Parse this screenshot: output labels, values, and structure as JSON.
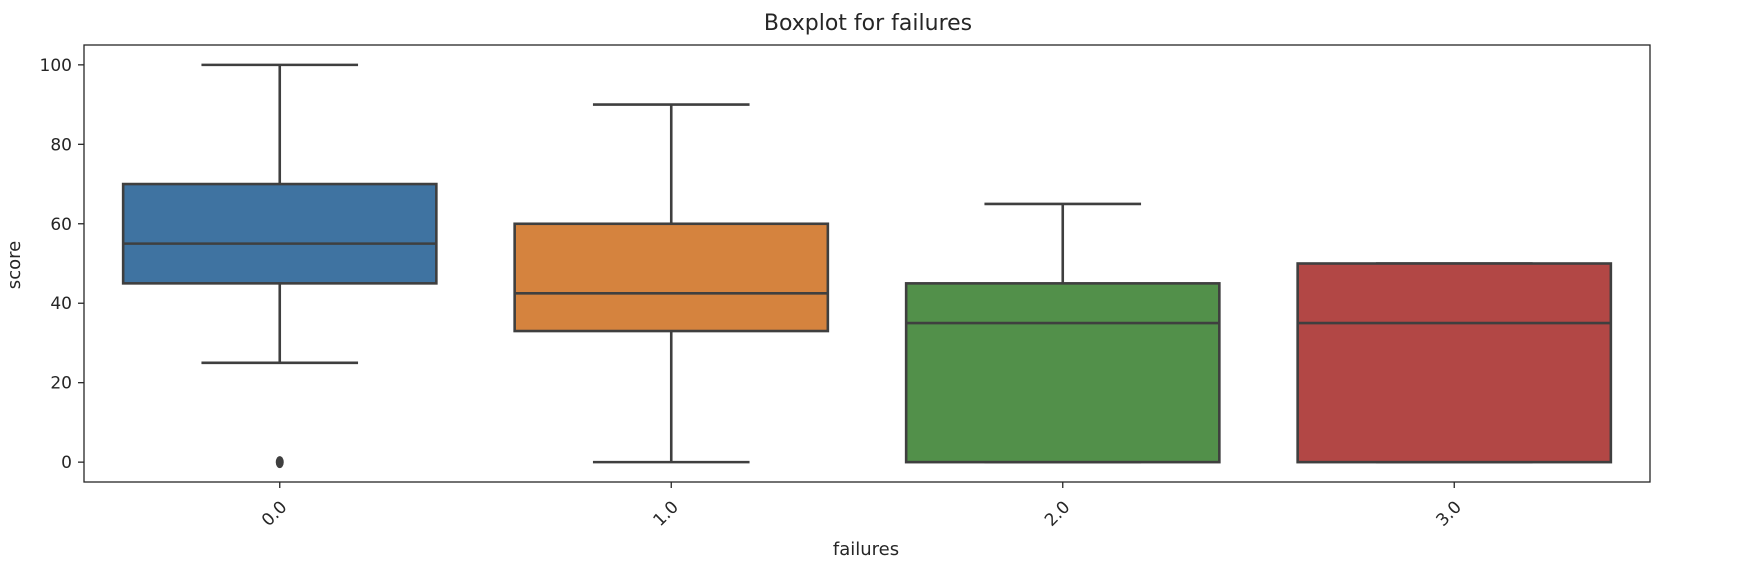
{
  "chart_data": {
    "type": "box",
    "title": "Boxplot for failures",
    "xlabel": "failures",
    "ylabel": "score",
    "ylim": [
      -5,
      105
    ],
    "yticks": [
      0,
      20,
      40,
      60,
      80,
      100
    ],
    "grid": false,
    "categories": [
      "0.0",
      "1.0",
      "2.0",
      "3.0"
    ],
    "boxes": [
      {
        "category": "0.0",
        "whisker_low": 25,
        "q1": 45,
        "median": 55,
        "q3": 70,
        "whisker_high": 100,
        "outliers": [
          0
        ],
        "color": "#3f73a1"
      },
      {
        "category": "1.0",
        "whisker_low": 0,
        "q1": 33,
        "median": 42.5,
        "q3": 60,
        "whisker_high": 90,
        "outliers": [],
        "color": "#d5833e"
      },
      {
        "category": "2.0",
        "whisker_low": 0,
        "q1": 0,
        "median": 35,
        "q3": 45,
        "whisker_high": 65,
        "outliers": [],
        "color": "#52904a"
      },
      {
        "category": "3.0",
        "whisker_low": 0,
        "q1": 0,
        "median": 35,
        "q3": 50,
        "whisker_high": 50,
        "outliers": [],
        "color": "#b24745"
      }
    ]
  }
}
